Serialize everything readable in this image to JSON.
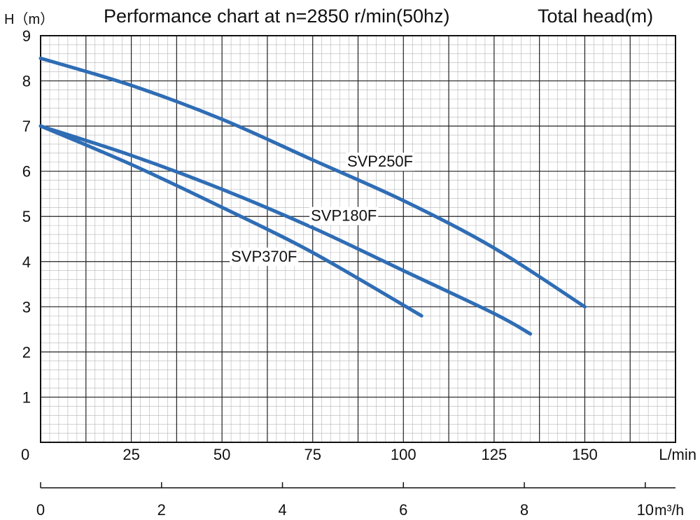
{
  "header": {
    "ylabel": "H（m）",
    "title": "Performance chart at n=2850 r/min(50hz)",
    "right_label": "Total head(m)"
  },
  "chart_data": {
    "type": "line",
    "title": "Performance chart at n=2850 r/min(50hz)",
    "ylabel": "H（m）",
    "xlabel": "L/min",
    "x2label": "m³/h",
    "xlim": [
      0,
      175
    ],
    "ylim": [
      0,
      9
    ],
    "x2lim": [
      0,
      10.5
    ],
    "grid": true,
    "x_ticks": [
      0,
      25,
      50,
      75,
      100,
      125,
      150
    ],
    "y_ticks": [
      1,
      2,
      3,
      4,
      5,
      6,
      7,
      8,
      9
    ],
    "y_tick_labels": [
      "1",
      "2",
      "3",
      "4",
      "5",
      "6",
      "7",
      "8",
      "9"
    ],
    "x2_ticks": [
      0,
      2,
      4,
      6,
      8,
      10
    ],
    "origin_label": "0",
    "line_color": "#2f6db5",
    "series": [
      {
        "name": "SVP250F",
        "x": [
          0,
          25,
          50,
          75,
          100,
          125,
          150
        ],
        "y": [
          8.5,
          7.9,
          7.15,
          6.25,
          5.35,
          4.3,
          3.0
        ]
      },
      {
        "name": "SVP180F",
        "x": [
          0,
          25,
          50,
          75,
          100,
          125,
          135
        ],
        "y": [
          7.0,
          6.35,
          5.6,
          4.75,
          3.8,
          2.85,
          2.4
        ]
      },
      {
        "name": "SVP370F",
        "x": [
          0,
          25,
          50,
          75,
          105
        ],
        "y": [
          7.0,
          6.15,
          5.2,
          4.2,
          2.8
        ]
      }
    ],
    "annotations": [
      {
        "text": "SVP250F",
        "x": 84.5,
        "y": 6.1
      },
      {
        "text": "SVP180F",
        "x": 74.5,
        "y": 4.9
      },
      {
        "text": "SVP370F",
        "x": 52.5,
        "y": 4.0
      }
    ]
  }
}
